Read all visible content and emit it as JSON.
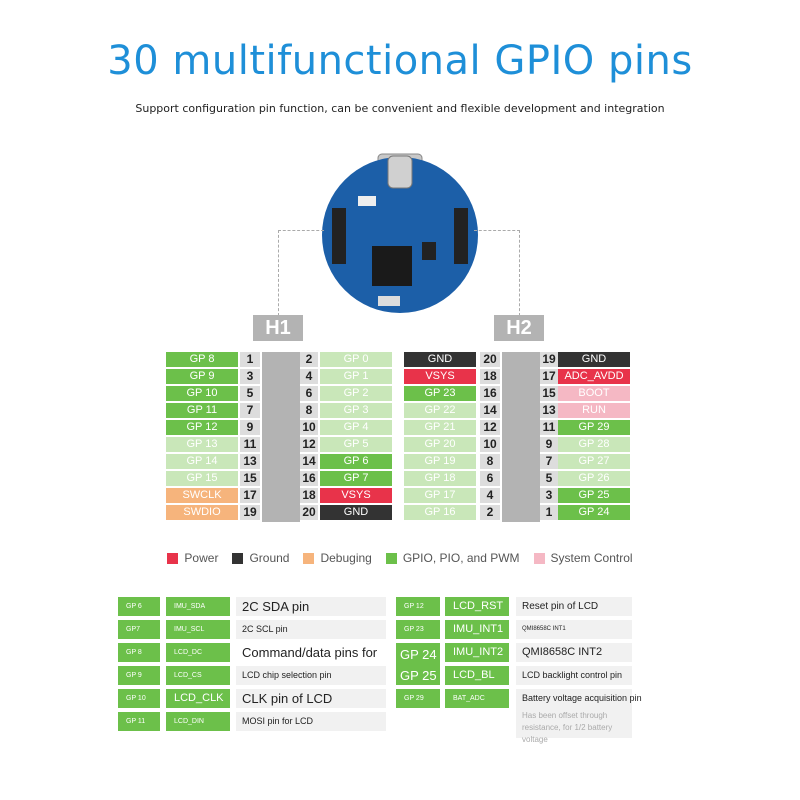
{
  "title": "30 multifunctional GPIO pins",
  "subtitle": "Support configuration pin function, can be convenient and flexible development and integration",
  "colors": {
    "gpio": "#6cc04a",
    "gpio_light": "#c9e7b9",
    "power": "#e8334a",
    "ground": "#333333",
    "debug": "#f6b47c",
    "system": "#f5b8c4",
    "title": "#1e8fd8"
  },
  "h1": {
    "label": "H1",
    "rows": [
      {
        "left": "GP 8",
        "ln": "1",
        "rn": "2",
        "right": "GP 0",
        "lc": "gpio",
        "rc": "gpio_light"
      },
      {
        "left": "GP 9",
        "ln": "3",
        "rn": "4",
        "right": "GP 1",
        "lc": "gpio",
        "rc": "gpio_light"
      },
      {
        "left": "GP 10",
        "ln": "5",
        "rn": "6",
        "right": "GP 2",
        "lc": "gpio",
        "rc": "gpio_light"
      },
      {
        "left": "GP 11",
        "ln": "7",
        "rn": "8",
        "right": "GP 3",
        "lc": "gpio",
        "rc": "gpio_light"
      },
      {
        "left": "GP 12",
        "ln": "9",
        "rn": "10",
        "right": "GP 4",
        "lc": "gpio",
        "rc": "gpio_light"
      },
      {
        "left": "GP 13",
        "ln": "11",
        "rn": "12",
        "right": "GP 5",
        "lc": "gpio_light",
        "rc": "gpio_light"
      },
      {
        "left": "GP 14",
        "ln": "13",
        "rn": "14",
        "right": "GP 6",
        "lc": "gpio_light",
        "rc": "gpio"
      },
      {
        "left": "GP 15",
        "ln": "15",
        "rn": "16",
        "right": "GP 7",
        "lc": "gpio_light",
        "rc": "gpio"
      },
      {
        "left": "SWCLK",
        "ln": "17",
        "rn": "18",
        "right": "VSYS",
        "lc": "debug",
        "rc": "power"
      },
      {
        "left": "SWDIO",
        "ln": "19",
        "rn": "20",
        "right": "GND",
        "lc": "debug",
        "rc": "ground"
      }
    ]
  },
  "h2": {
    "label": "H2",
    "rows": [
      {
        "left": "GND",
        "ln": "20",
        "rn": "19",
        "right": "GND",
        "lc": "ground",
        "rc": "ground"
      },
      {
        "left": "VSYS",
        "ln": "18",
        "rn": "17",
        "right": "ADC_AVDD",
        "lc": "power",
        "rc": "power"
      },
      {
        "left": "GP 23",
        "ln": "16",
        "rn": "15",
        "right": "BOOT",
        "lc": "gpio",
        "rc": "system"
      },
      {
        "left": "GP 22",
        "ln": "14",
        "rn": "13",
        "right": "RUN",
        "lc": "gpio_light",
        "rc": "system"
      },
      {
        "left": "GP 21",
        "ln": "12",
        "rn": "11",
        "right": "GP 29",
        "lc": "gpio_light",
        "rc": "gpio"
      },
      {
        "left": "GP 20",
        "ln": "10",
        "rn": "9",
        "right": "GP 28",
        "lc": "gpio_light",
        "rc": "gpio_light"
      },
      {
        "left": "GP 19",
        "ln": "8",
        "rn": "7",
        "right": "GP 27",
        "lc": "gpio_light",
        "rc": "gpio_light"
      },
      {
        "left": "GP 18",
        "ln": "6",
        "rn": "5",
        "right": "GP 26",
        "lc": "gpio_light",
        "rc": "gpio_light"
      },
      {
        "left": "GP 17",
        "ln": "4",
        "rn": "3",
        "right": "GP 25",
        "lc": "gpio_light",
        "rc": "gpio"
      },
      {
        "left": "GP 16",
        "ln": "2",
        "rn": "1",
        "right": "GP 24",
        "lc": "gpio_light",
        "rc": "gpio"
      }
    ]
  },
  "legend": [
    {
      "label": "Power",
      "color": "power"
    },
    {
      "label": "Ground",
      "color": "ground"
    },
    {
      "label": "Debuging",
      "color": "debug"
    },
    {
      "label": "GPIO, PIO, and PWM",
      "color": "gpio"
    },
    {
      "label": "System Control",
      "color": "system"
    }
  ],
  "functions_left": [
    {
      "gp": "GP 6",
      "sig": "IMU_SDA",
      "desc": "2C SDA pin"
    },
    {
      "gp": "GP7",
      "sig": "IMU_SCL",
      "desc": "2C SCL pin"
    },
    {
      "gp": "GP 8",
      "sig": "LCD_DC",
      "desc": "Command/data pins for"
    },
    {
      "gp": "GP 9",
      "sig": "LCD_CS",
      "desc": "LCD chip selection pin"
    },
    {
      "gp": "GP 10",
      "sig": "LCD_CLK",
      "desc": "CLK pin of LCD"
    },
    {
      "gp": "GP 11",
      "sig": "LCD_DIN",
      "desc": "MOSI pin for LCD"
    }
  ],
  "functions_right": [
    {
      "gp": "GP 12",
      "sig": "LCD_RST",
      "desc": "Reset pin of LCD"
    },
    {
      "gp": "GP 23",
      "sig": "IMU_INT1",
      "desc": "QMI8658C INT1"
    },
    {
      "gp": "GP 24",
      "sig": "IMU_INT2",
      "desc": "QMI8658C INT2"
    },
    {
      "gp": "GP 25",
      "sig": "LCD_BL",
      "desc": "LCD backlight control pin"
    },
    {
      "gp": "GP 29",
      "sig": "BAT_ADC",
      "desc": "Battery voltage acquisition pin",
      "note": "Has been offset through resistance, for 1/2 battery voltage"
    }
  ]
}
